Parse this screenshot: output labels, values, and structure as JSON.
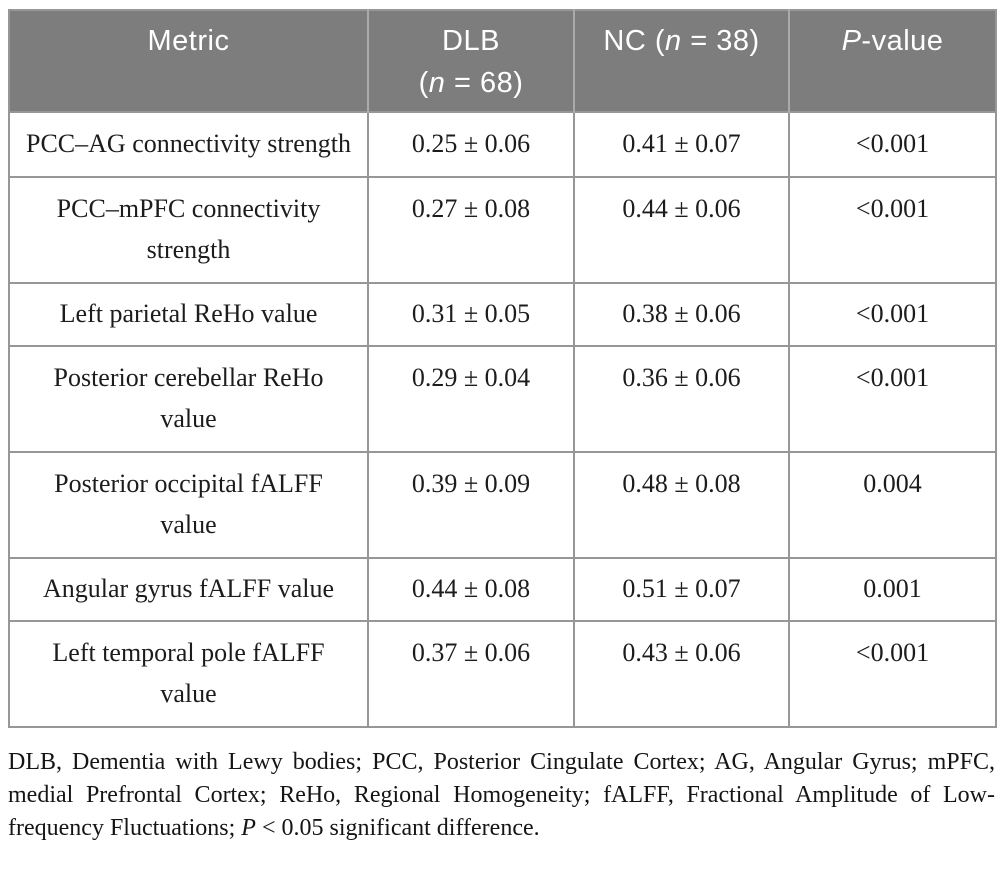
{
  "header": {
    "metric": "Metric",
    "dlb_line1": "DLB",
    "dlb_open": "(",
    "dlb_n": "n",
    "dlb_rest": " = 68)",
    "nc_prefix": "NC (",
    "nc_n": "n",
    "nc_rest": " = 38)",
    "p_italic": "P",
    "p_rest": "-value"
  },
  "rows": [
    {
      "metric": "PCC–AG connectivity strength",
      "dlb": "0.25 ± 0.06",
      "nc": "0.41 ± 0.07",
      "p": "<0.001"
    },
    {
      "metric": "PCC–mPFC connectivity strength",
      "dlb": "0.27 ± 0.08",
      "nc": "0.44 ± 0.06",
      "p": "<0.001"
    },
    {
      "metric": "Left parietal ReHo value",
      "dlb": "0.31 ± 0.05",
      "nc": "0.38 ± 0.06",
      "p": "<0.001"
    },
    {
      "metric": "Posterior cerebellar ReHo value",
      "dlb": "0.29 ± 0.04",
      "nc": "0.36 ± 0.06",
      "p": "<0.001"
    },
    {
      "metric": "Posterior occipital fALFF value",
      "dlb": "0.39 ± 0.09",
      "nc": "0.48 ± 0.08",
      "p": "0.004"
    },
    {
      "metric": "Angular gyrus fALFF value",
      "dlb": "0.44 ± 0.08",
      "nc": "0.51 ± 0.07",
      "p": "0.001"
    },
    {
      "metric": "Left temporal pole fALFF value",
      "dlb": "0.37 ± 0.06",
      "nc": "0.43 ± 0.06",
      "p": "<0.001"
    }
  ],
  "footnote": {
    "text_before": "DLB, Dementia with Lewy bodies; PCC, Posterior Cingulate Cortex; AG, Angular Gyrus; mPFC, medial Prefrontal Cortex; ReHo, Regional Homogeneity; fALFF, Fractional Amplitude of Low-frequency Fluctuations; ",
    "p_italic": "P",
    "text_after": " < 0.05 significant difference."
  },
  "colors": {
    "header_background": "#7d7d7d",
    "header_text": "#ffffff",
    "table_border": "#979797",
    "body_text": "#1c1c1c"
  },
  "chart_data": {
    "type": "table",
    "title": "Comparison of imaging metrics between DLB and NC groups",
    "columns": [
      "Metric",
      "DLB (n = 68)",
      "NC (n = 38)",
      "P-value"
    ],
    "rows": [
      [
        "PCC–AG connectivity strength",
        "0.25 ± 0.06",
        "0.41 ± 0.07",
        "<0.001"
      ],
      [
        "PCC–mPFC connectivity strength",
        "0.27 ± 0.08",
        "0.44 ± 0.06",
        "<0.001"
      ],
      [
        "Left parietal ReHo value",
        "0.31 ± 0.05",
        "0.38 ± 0.06",
        "<0.001"
      ],
      [
        "Posterior cerebellar ReHo value",
        "0.29 ± 0.04",
        "0.36 ± 0.06",
        "<0.001"
      ],
      [
        "Posterior occipital fALFF value",
        "0.39 ± 0.09",
        "0.48 ± 0.08",
        "0.004"
      ],
      [
        "Angular gyrus fALFF value",
        "0.44 ± 0.08",
        "0.51 ± 0.07",
        "0.001"
      ],
      [
        "Left temporal pole fALFF value",
        "0.37 ± 0.06",
        "0.43 ± 0.06",
        "<0.001"
      ]
    ]
  }
}
